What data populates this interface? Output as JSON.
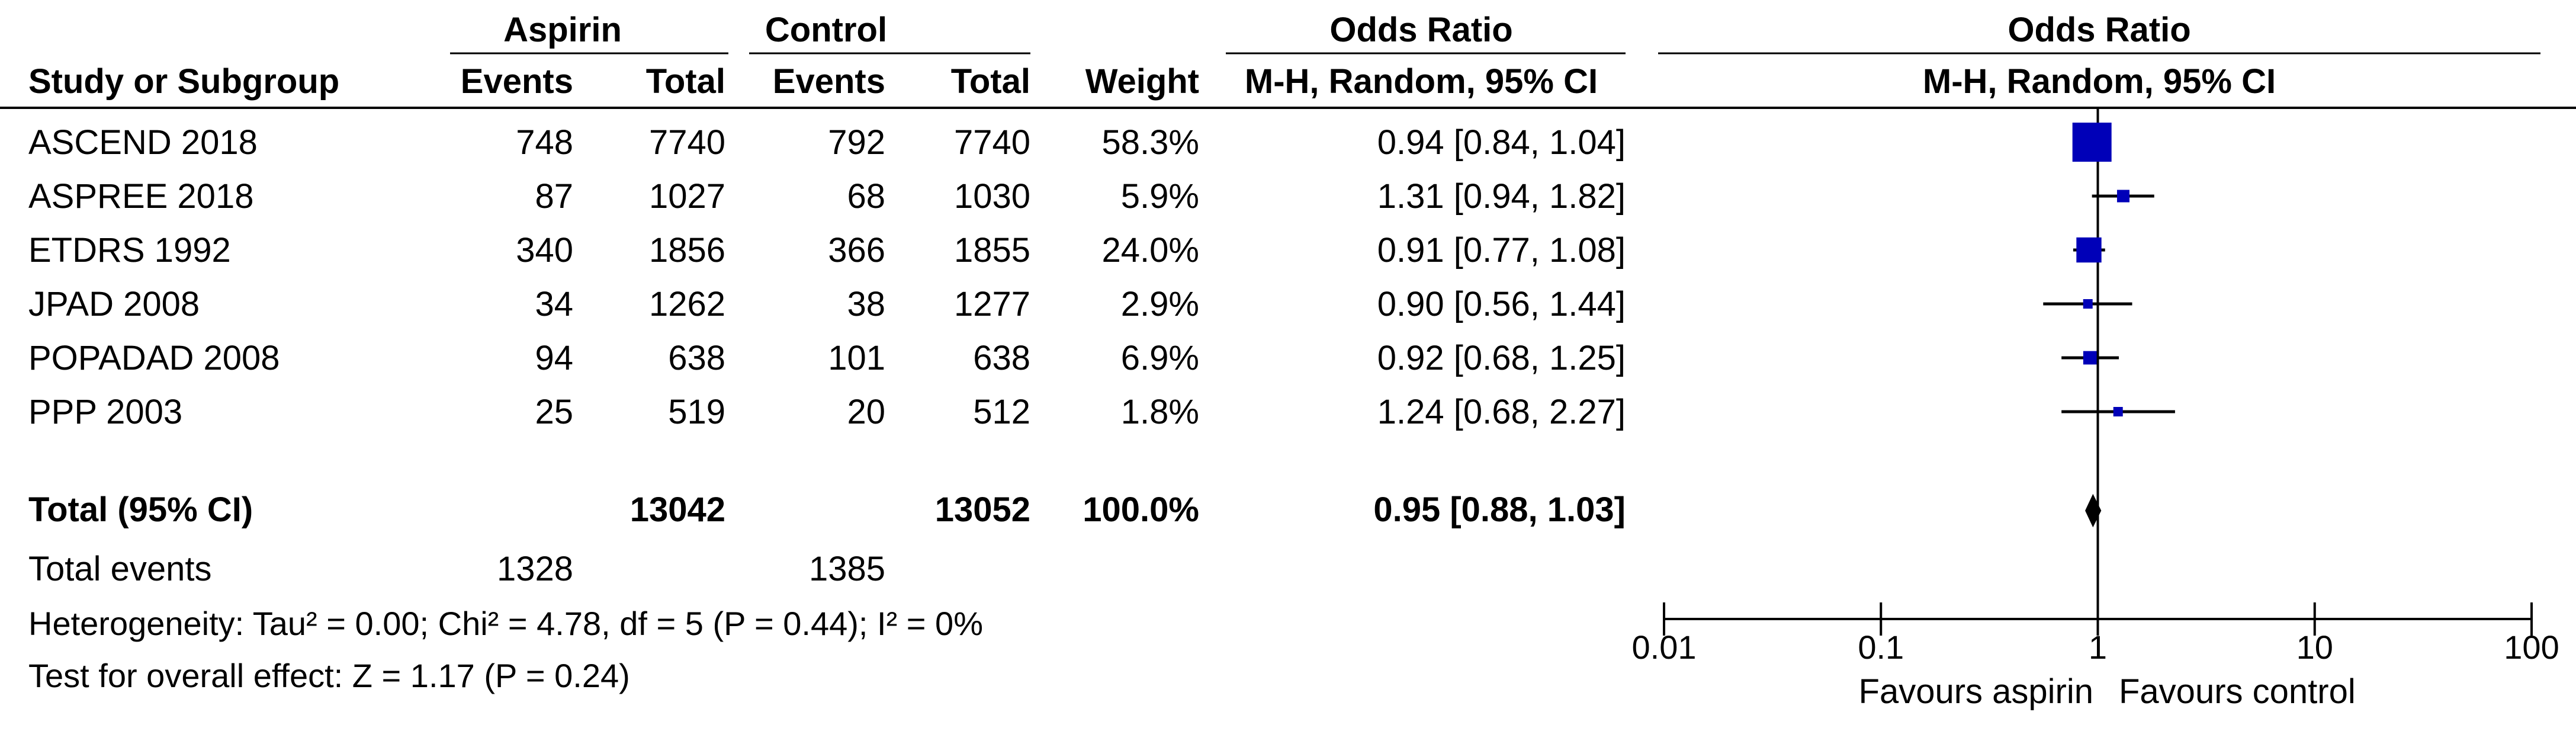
{
  "header": {
    "group1": "Aspirin",
    "group2": "Control",
    "effect_title": "Odds Ratio",
    "plot_title": "Odds Ratio",
    "col_study": "Study or Subgroup",
    "col_events1": "Events",
    "col_total1": "Total",
    "col_events2": "Events",
    "col_total2": "Total",
    "col_weight": "Weight",
    "col_effect": "M-H, Random, 95% CI",
    "plot_subtitle": "M-H, Random, 95% CI"
  },
  "studies": [
    {
      "name": "ASCEND 2018",
      "e1": "748",
      "n1": "7740",
      "e2": "792",
      "n2": "7740",
      "weight": "58.3%",
      "ci_text": "0.94 [0.84, 1.04]"
    },
    {
      "name": "ASPREE 2018",
      "e1": "87",
      "n1": "1027",
      "e2": "68",
      "n2": "1030",
      "weight": "5.9%",
      "ci_text": "1.31 [0.94, 1.82]"
    },
    {
      "name": "ETDRS 1992",
      "e1": "340",
      "n1": "1856",
      "e2": "366",
      "n2": "1855",
      "weight": "24.0%",
      "ci_text": "0.91 [0.77, 1.08]"
    },
    {
      "name": "JPAD 2008",
      "e1": "34",
      "n1": "1262",
      "e2": "38",
      "n2": "1277",
      "weight": "2.9%",
      "ci_text": "0.90 [0.56, 1.44]"
    },
    {
      "name": "POPADAD 2008",
      "e1": "94",
      "n1": "638",
      "e2": "101",
      "n2": "638",
      "weight": "6.9%",
      "ci_text": "0.92 [0.68, 1.25]"
    },
    {
      "name": "PPP 2003",
      "e1": "25",
      "n1": "519",
      "e2": "20",
      "n2": "512",
      "weight": "1.8%",
      "ci_text": "1.24 [0.68, 2.27]"
    }
  ],
  "total": {
    "label": "Total (95% CI)",
    "n1": "13042",
    "n2": "13052",
    "weight": "100.0%",
    "ci_text": "0.95 [0.88, 1.03]"
  },
  "total_events": {
    "label": "Total events",
    "e1": "1328",
    "e2": "1385"
  },
  "heterogeneity": "Heterogeneity: Tau² = 0.00; Chi² = 4.78, df = 5 (P = 0.44); I² = 0%",
  "overall_effect": "Test for overall effect: Z = 1.17 (P = 0.24)",
  "axis": {
    "favours_left": "Favours aspirin",
    "favours_right": "Favours control"
  },
  "chart_data": {
    "type": "forest",
    "scale": "log",
    "xlim": [
      0.01,
      100
    ],
    "ticks": [
      {
        "value": 0.01,
        "label": "0.01"
      },
      {
        "value": 0.1,
        "label": "0.1"
      },
      {
        "value": 1,
        "label": "1"
      },
      {
        "value": 10,
        "label": "10"
      },
      {
        "value": 100,
        "label": "100"
      }
    ],
    "null_value": 1,
    "marker_color": "#0000b8",
    "studies": [
      {
        "name": "ASCEND 2018",
        "or": 0.94,
        "lower": 0.84,
        "upper": 1.04,
        "weight": 58.3
      },
      {
        "name": "ASPREE 2018",
        "or": 1.31,
        "lower": 0.94,
        "upper": 1.82,
        "weight": 5.9
      },
      {
        "name": "ETDRS 1992",
        "or": 0.91,
        "lower": 0.77,
        "upper": 1.08,
        "weight": 24.0
      },
      {
        "name": "JPAD 2008",
        "or": 0.9,
        "lower": 0.56,
        "upper": 1.44,
        "weight": 2.9
      },
      {
        "name": "POPADAD 2008",
        "or": 0.92,
        "lower": 0.68,
        "upper": 1.25,
        "weight": 6.9
      },
      {
        "name": "PPP 2003",
        "or": 1.24,
        "lower": 0.68,
        "upper": 2.27,
        "weight": 1.8
      }
    ],
    "pooled": {
      "or": 0.95,
      "lower": 0.88,
      "upper": 1.03
    }
  }
}
